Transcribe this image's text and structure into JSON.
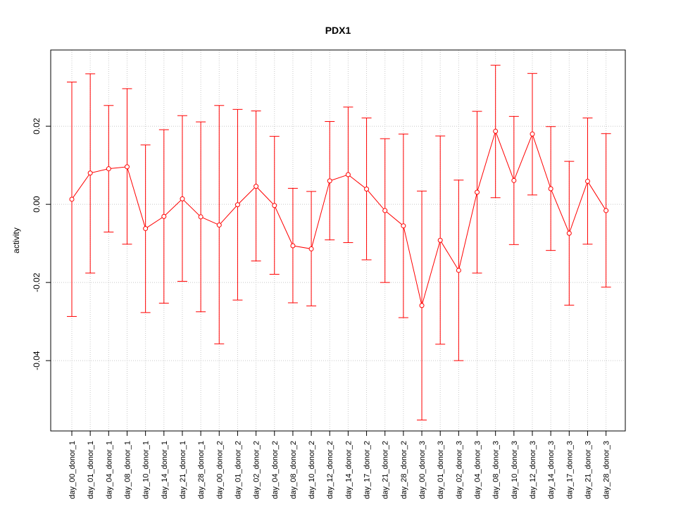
{
  "chart_data": {
    "type": "line",
    "title": "PDX1",
    "ylabel": "activity",
    "xlabel": "",
    "ylim": [
      -0.058,
      0.0395
    ],
    "yticks": [
      -0.04,
      -0.02,
      0.0,
      0.02
    ],
    "ytick_labels": [
      "-0.04",
      "-0.02",
      "0.00",
      "0.02"
    ],
    "grid": true,
    "color": "#ff0000",
    "categories": [
      "day_00_donor_1",
      "day_01_donor_1",
      "day_04_donor_1",
      "day_08_donor_1",
      "day_10_donor_1",
      "day_14_donor_1",
      "day_21_donor_1",
      "day_28_donor_1",
      "day_00_donor_2",
      "day_01_donor_2",
      "day_02_donor_2",
      "day_04_donor_2",
      "day_08_donor_2",
      "day_10_donor_2",
      "day_12_donor_2",
      "day_14_donor_2",
      "day_17_donor_2",
      "day_21_donor_2",
      "day_28_donor_2",
      "day_00_donor_3",
      "day_01_donor_3",
      "day_02_donor_3",
      "day_04_donor_3",
      "day_08_donor_3",
      "day_10_donor_3",
      "day_12_donor_3",
      "day_14_donor_3",
      "day_17_donor_3",
      "day_21_donor_3",
      "day_28_donor_3"
    ],
    "values": [
      0.0013,
      0.008,
      0.0091,
      0.0096,
      -0.0062,
      -0.0031,
      0.0014,
      -0.0032,
      -0.0053,
      -0.0001,
      0.0046,
      -0.0003,
      -0.0106,
      -0.0114,
      0.006,
      0.0076,
      0.0039,
      -0.0016,
      -0.0055,
      -0.0259,
      -0.0092,
      -0.0169,
      0.0031,
      0.0187,
      0.0061,
      0.018,
      0.004,
      -0.0074,
      0.0059,
      -0.0016
    ],
    "upper": [
      0.0313,
      0.0334,
      0.0253,
      0.0296,
      0.0152,
      0.0191,
      0.0227,
      0.0211,
      0.0253,
      0.0243,
      0.0239,
      0.0174,
      0.0041,
      0.0033,
      0.0212,
      0.0249,
      0.0221,
      0.0168,
      0.018,
      0.0034,
      0.0175,
      0.0062,
      0.0238,
      0.0356,
      0.0225,
      0.0335,
      0.0199,
      0.011,
      0.0221,
      0.0181
    ],
    "lower": [
      -0.0287,
      -0.0176,
      -0.0071,
      -0.0102,
      -0.0277,
      -0.0253,
      -0.0197,
      -0.0275,
      -0.0357,
      -0.0245,
      -0.0145,
      -0.0179,
      -0.0252,
      -0.026,
      -0.0091,
      -0.0098,
      -0.0142,
      -0.02,
      -0.029,
      -0.0552,
      -0.0358,
      -0.04,
      -0.0176,
      0.0017,
      -0.0103,
      0.0024,
      -0.0118,
      -0.0258,
      -0.0102,
      -0.0212
    ]
  }
}
